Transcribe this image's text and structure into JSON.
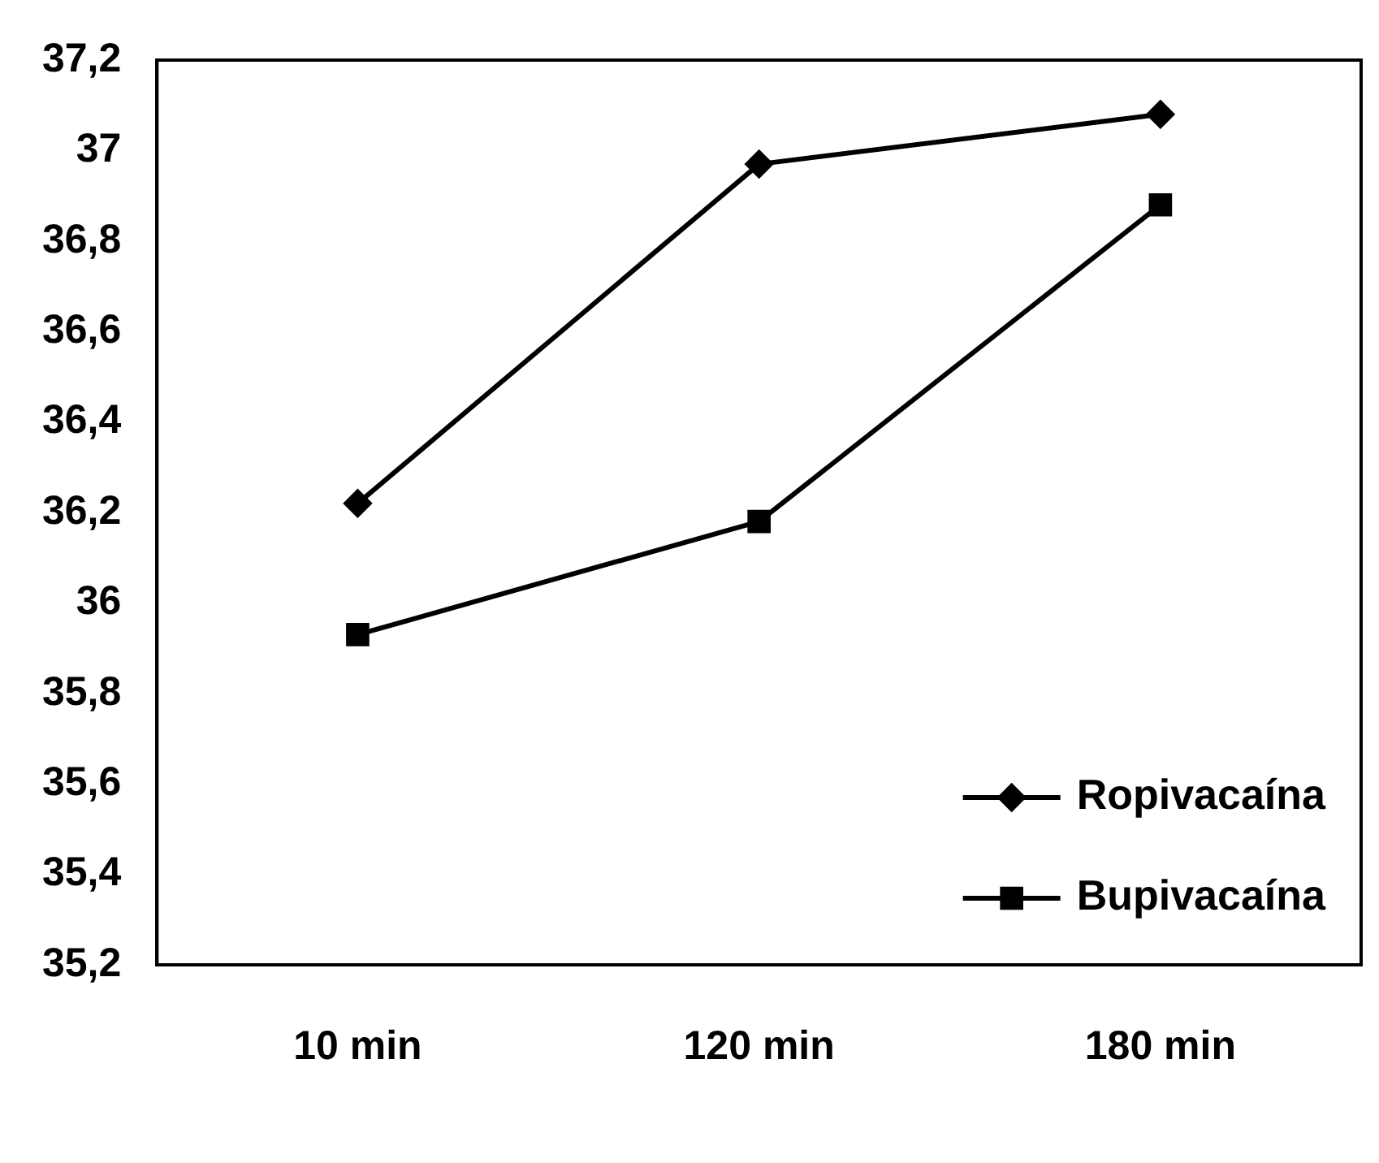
{
  "chart_data": {
    "type": "line",
    "categories": [
      "10 min",
      "120 min",
      "180 min"
    ],
    "series": [
      {
        "name": "Ropivacaína",
        "color": "#000000",
        "marker": "diamond",
        "values": [
          36.22,
          36.97,
          37.08
        ]
      },
      {
        "name": "Bupivacaína",
        "color": "#000000",
        "marker": "square",
        "values": [
          35.93,
          36.18,
          36.88
        ]
      }
    ],
    "ylim": [
      35.2,
      37.2
    ],
    "yticks": [
      {
        "value": 35.2,
        "label": "35,2"
      },
      {
        "value": 35.4,
        "label": "35,4"
      },
      {
        "value": 35.6,
        "label": "35,6"
      },
      {
        "value": 35.8,
        "label": "35,8"
      },
      36,
      {
        "value": 36.2,
        "label": "36,2"
      },
      {
        "value": 36.4,
        "label": "36,4"
      },
      {
        "value": 36.6,
        "label": "36,6"
      },
      {
        "value": 36.8,
        "label": "36,8"
      },
      37,
      {
        "value": 37.2,
        "label": "37,2"
      }
    ],
    "grid": false,
    "legend": "bottom right",
    "line_style": "solid"
  }
}
